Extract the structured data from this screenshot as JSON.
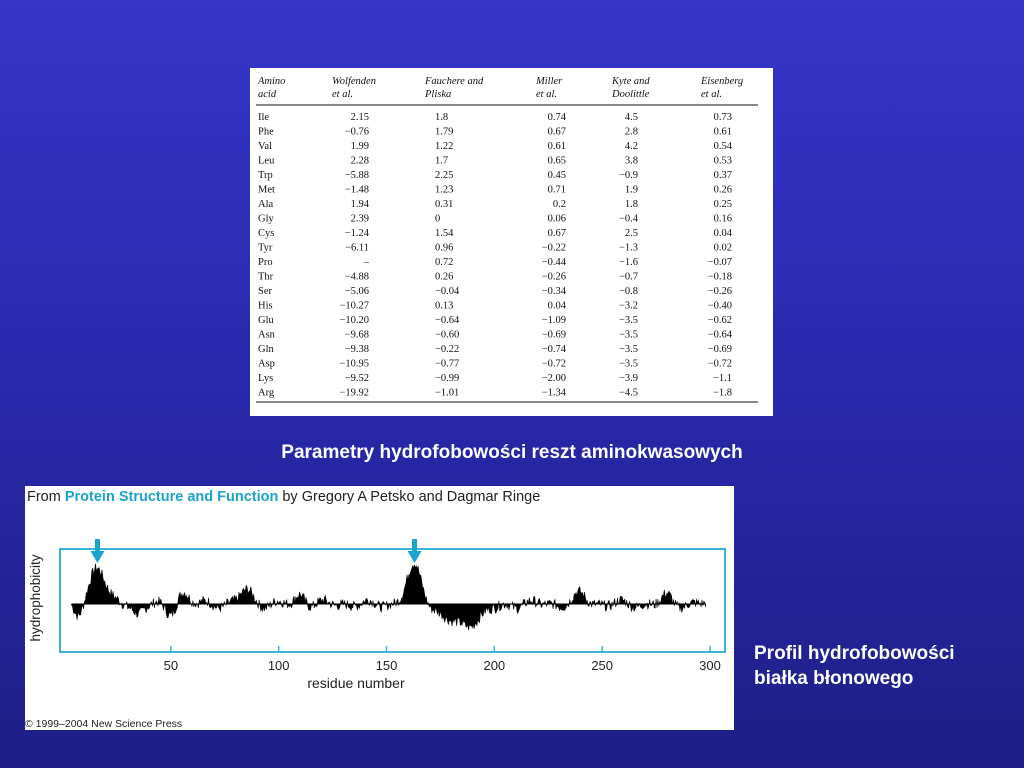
{
  "table": {
    "headers": [
      [
        "Amino",
        "acid"
      ],
      [
        "Wolfenden",
        "et al."
      ],
      [
        "Fauchere and",
        "Pliska"
      ],
      [
        "Miller",
        "et al."
      ],
      [
        "Kyte and",
        "Doolittle"
      ],
      [
        "Eisenberg",
        "et al."
      ]
    ],
    "rows": [
      [
        "Ile",
        "2.15",
        "1.8",
        "0.74",
        "4.5",
        "0.73"
      ],
      [
        "Phe",
        "−0.76",
        "1.79",
        "0.67",
        "2.8",
        "0.61"
      ],
      [
        "Val",
        "1.99",
        "1.22",
        "0.61",
        "4.2",
        "0.54"
      ],
      [
        "Leu",
        "2.28",
        "1.7",
        "0.65",
        "3.8",
        "0.53"
      ],
      [
        "Trp",
        "−5.88",
        "2.25",
        "0.45",
        "−0.9",
        "0.37"
      ],
      [
        "Met",
        "−1.48",
        "1.23",
        "0.71",
        "1.9",
        "0.26"
      ],
      [
        "Ala",
        "1.94",
        "0.31",
        "0.2",
        "1.8",
        "0.25"
      ],
      [
        "Gly",
        "2.39",
        "0",
        "0.06",
        "−0.4",
        "0.16"
      ],
      [
        "Cys",
        "−1.24",
        "1.54",
        "0.67",
        "2.5",
        "0.04"
      ],
      [
        "Tyr",
        "−6.11",
        "0.96",
        "−0.22",
        "−1.3",
        "0.02"
      ],
      [
        "Pro",
        "–",
        "0.72",
        "−0.44",
        "−1.6",
        "−0.07"
      ],
      [
        "Thr",
        "−4.88",
        "0.26",
        "−0.26",
        "−0.7",
        "−0.18"
      ],
      [
        "Ser",
        "−5.06",
        "−0.04",
        "−0.34",
        "−0.8",
        "−0.26"
      ],
      [
        "His",
        "−10.27",
        "0.13",
        "0.04",
        "−3.2",
        "−0.40"
      ],
      [
        "Glu",
        "−10.20",
        "−0.64",
        "−1.09",
        "−3.5",
        "−0.62"
      ],
      [
        "Asn",
        "−9.68",
        "−0.60",
        "−0.69",
        "−3.5",
        "−0.64"
      ],
      [
        "Gln",
        "−9.38",
        "−0.22",
        "−0.74",
        "−3.5",
        "−0.69"
      ],
      [
        "Asp",
        "−10.95",
        "−0.77",
        "−0.72",
        "−3.5",
        "−0.72"
      ],
      [
        "Lys",
        "−9.52",
        "−0.99",
        "−2.00",
        "−3.9",
        "−1.1"
      ],
      [
        "Arg",
        "−19.92",
        "−1.01",
        "−1.34",
        "−4.5",
        "−1.8"
      ]
    ]
  },
  "captions": {
    "table": "Parametry hydrofobowości reszt aminokwasowych",
    "profile_line1": "Profil hydrofobowości",
    "profile_line2": "białka błonowego"
  },
  "profile": {
    "source_prefix": "From ",
    "source_title": "Protein Structure and Function",
    "source_suffix": " by Gregory A Petsko and Dagmar Ringe",
    "copyright": "© 1999–2004 New Science Press",
    "ylabel": "hydrophobicity",
    "xlabel": "residue number",
    "xticks": [
      50,
      100,
      150,
      200,
      250,
      300
    ],
    "xlim": [
      0,
      306
    ],
    "arrow_residues": [
      16,
      163
    ],
    "accent_color": "#1aa3cc",
    "frame_color": "#3cb4d8",
    "profile_peaks": [
      {
        "residue": 16,
        "height": 1.0,
        "width": 5
      },
      {
        "residue": 163,
        "height": 1.0,
        "width": 5
      },
      {
        "residue": 55,
        "height": 0.35,
        "width": 4
      },
      {
        "residue": 85,
        "height": 0.35,
        "width": 4
      },
      {
        "residue": 110,
        "height": 0.25,
        "width": 3
      },
      {
        "residue": 185,
        "height": -0.55,
        "width": 12
      },
      {
        "residue": 50,
        "height": -0.3,
        "width": 4
      },
      {
        "residue": 35,
        "height": -0.25,
        "width": 3
      },
      {
        "residue": 240,
        "height": 0.25,
        "width": 4
      },
      {
        "residue": 280,
        "height": 0.2,
        "width": 3
      },
      {
        "residue": 7,
        "height": -0.35,
        "width": 3
      }
    ]
  }
}
